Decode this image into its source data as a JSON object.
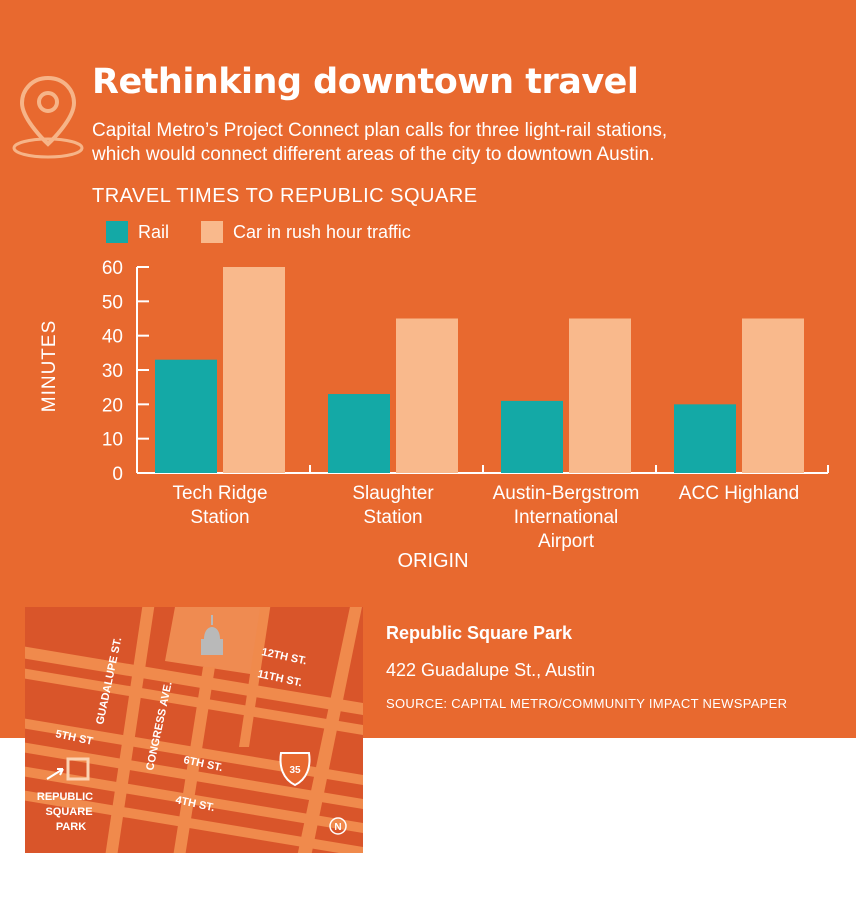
{
  "header": {
    "title": "Rethinking downtown travel",
    "subtitle_lines": [
      "Capital Metro’s Project Connect plan calls for three light-rail stations,",
      "which would connect different areas of the city to downtown Austin."
    ]
  },
  "chart_data": {
    "type": "bar",
    "title": "TRAVEL TIMES TO REPUBLIC SQUARE",
    "xlabel": "ORIGIN",
    "ylabel": "MINUTES",
    "ylim": [
      0,
      60
    ],
    "yticks": [
      0,
      10,
      20,
      30,
      40,
      50,
      60
    ],
    "categories": [
      [
        "Tech Ridge",
        "Station"
      ],
      [
        "Slaughter",
        "Station"
      ],
      [
        "Austin-Bergstrom",
        "International",
        "Airport"
      ],
      [
        "ACC Highland"
      ]
    ],
    "series": [
      {
        "name": "Rail",
        "values": [
          33,
          23,
          21,
          20
        ],
        "color": "#14a9a6"
      },
      {
        "name": "Car in rush hour traffic",
        "values": [
          60,
          45,
          45,
          45
        ],
        "color": "#f9b98c"
      }
    ],
    "legend": "top-left",
    "grid": false
  },
  "map": {
    "name": "Republic Square Park",
    "address": "422 Guadalupe St., Austin",
    "source": "SOURCE: CAPITAL METRO/COMMUNITY IMPACT NEWSPAPER",
    "street_labels": {
      "guadalupe": "GUADALUPE ST.",
      "congress": "CONGRESS AVE.",
      "twelfth": "12TH ST.",
      "eleventh": "11TH ST.",
      "fifth": "5TH ST",
      "sixth": "6TH ST.",
      "fourth": "4TH ST.",
      "highway": "35",
      "north": "N"
    },
    "park_label_lines": [
      "REPUBLIC",
      "SQUARE",
      "PARK"
    ]
  },
  "colors": {
    "background": "#e8692f",
    "map_background": "#d9552a",
    "road": "#f08a4c",
    "rail": "#14a9a6",
    "car": "#f9b98c"
  },
  "icons": {
    "header": "location-pin-icon",
    "capitol": "capitol-building-icon",
    "highway": "interstate-shield-icon",
    "north": "north-arrow-icon"
  }
}
